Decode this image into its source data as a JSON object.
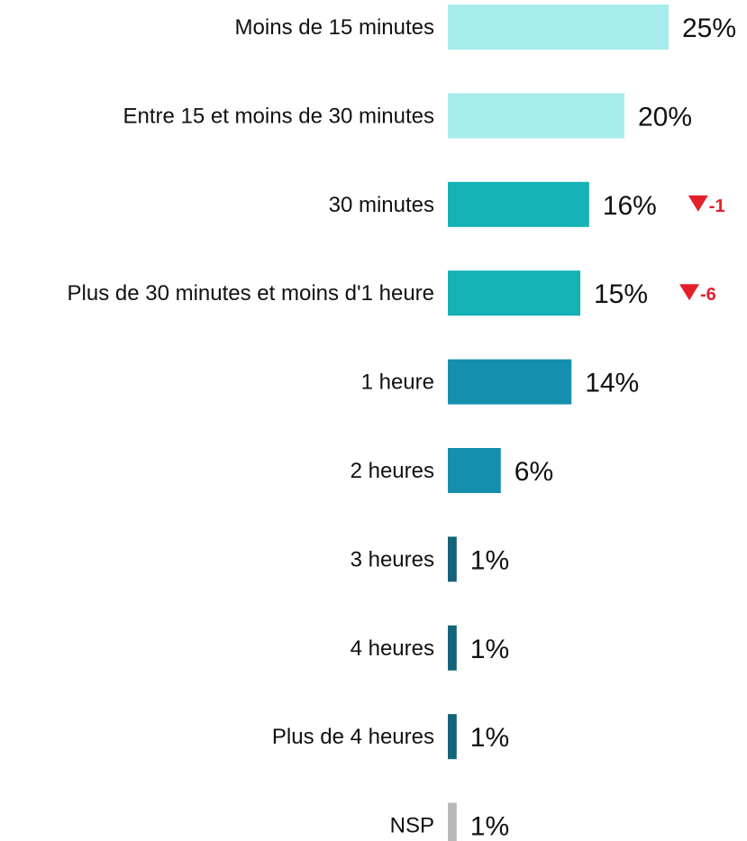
{
  "chart_data": {
    "type": "bar",
    "orientation": "horizontal",
    "title": "",
    "xlabel": "",
    "ylabel": "",
    "categories": [
      "Moins de 15 minutes",
      "Entre 15 et moins de 30 minutes",
      "30 minutes",
      "Plus de 30 minutes et moins d'1 heure",
      "1 heure",
      "2 heures",
      "3 heures",
      "4 heures",
      "Plus de 4 heures",
      "NSP"
    ],
    "values": [
      25,
      20,
      16,
      15,
      14,
      6,
      1,
      1,
      1,
      1
    ],
    "value_labels": [
      "25%",
      "20%",
      "16%",
      "15%",
      "14%",
      "6%",
      "1%",
      "1%",
      "1%",
      "1%"
    ],
    "colors": [
      "#a6ecec",
      "#a6ecec",
      "#14b1b5",
      "#14b1b5",
      "#168faf",
      "#168faf",
      "#14637a",
      "#14637a",
      "#14637a",
      "#b9b9b9"
    ],
    "changes": [
      {
        "index": 2,
        "direction": "down",
        "label": "-1"
      },
      {
        "index": 3,
        "direction": "down",
        "label": "-6"
      }
    ],
    "change_color": "#e3202a",
    "xlim": [
      0,
      25
    ],
    "grid": false,
    "legend": "none"
  }
}
